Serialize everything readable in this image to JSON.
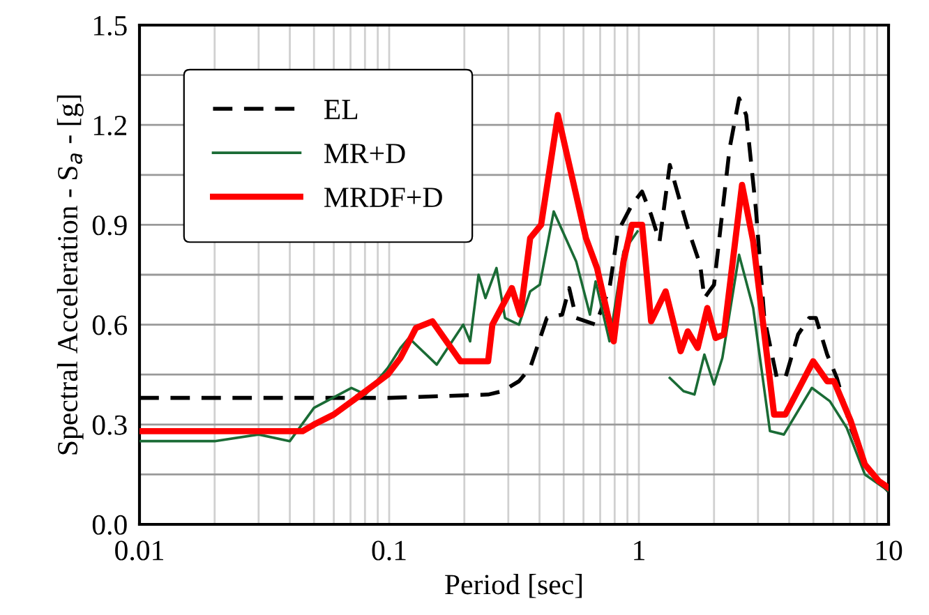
{
  "chart_data": {
    "type": "line",
    "xlabel": "Period [sec]",
    "ylabel": "Spectral Acceleration - S$_{a}$ - [g]",
    "log": "x",
    "xlim": [
      0.01,
      10
    ],
    "ylim": [
      0,
      1.5
    ],
    "xticks": [
      0.01,
      {
        "value": 0.02,
        "label": null
      },
      {
        "value": 0.03,
        "label": null
      },
      {
        "value": 0.04,
        "label": null
      },
      {
        "value": 0.05,
        "label": null
      },
      {
        "value": 0.06,
        "label": null
      },
      {
        "value": 0.07,
        "label": null
      },
      {
        "value": 0.08,
        "label": null
      },
      {
        "value": 0.09,
        "label": null
      },
      0.1,
      {
        "value": 0.2,
        "label": null
      },
      {
        "value": 0.3,
        "label": null
      },
      {
        "value": 0.4,
        "label": null
      },
      {
        "value": 0.5,
        "label": null
      },
      {
        "value": 0.6,
        "label": null
      },
      {
        "value": 0.7,
        "label": null
      },
      {
        "value": 0.8,
        "label": null
      },
      {
        "value": 0.9,
        "label": null
      },
      1,
      {
        "value": 2,
        "label": null
      },
      {
        "value": 3,
        "label": null
      },
      {
        "value": 4,
        "label": null
      },
      {
        "value": 5,
        "label": null
      },
      {
        "value": 6,
        "label": null
      },
      {
        "value": 7,
        "label": null
      },
      {
        "value": 8,
        "label": null
      },
      {
        "value": 9,
        "label": null
      },
      10
    ],
    "yticks": [
      {
        "value": 0,
        "label": "0.0"
      },
      {
        "value": 0.15,
        "label": null
      },
      0.3,
      {
        "value": 0.45,
        "label": null
      },
      0.6,
      {
        "value": 0.75,
        "label": null
      },
      0.9,
      {
        "value": 1.05,
        "label": null
      },
      1.2,
      {
        "value": 1.35,
        "label": null
      },
      1.5
    ],
    "grid": true,
    "legend": "top left",
    "marker": "none",
    "series": [
      {
        "name": "EL",
        "color": "#000000",
        "line_style": "dashed",
        "x": [
          0.01,
          0.1,
          0.249,
          0.284,
          0.331,
          0.367,
          0.428,
          0.493,
          0.526,
          0.561,
          0.671,
          0.763,
          0.824,
          0.938,
          1.03,
          1.12,
          1.21,
          1.33,
          1.45,
          1.57,
          1.76,
          1.83,
          2.0,
          2.31,
          2.52,
          2.69,
          2.94,
          3.18,
          3.57,
          3.86,
          4.34,
          4.81,
          5.12,
          5.68,
          6.21,
          7.06,
          8.04,
          9.14,
          10
        ],
        "values": [
          0.38,
          0.38,
          0.39,
          0.4,
          0.43,
          0.47,
          0.62,
          0.63,
          0.71,
          0.62,
          0.6,
          0.71,
          0.88,
          0.96,
          1.0,
          0.93,
          0.85,
          1.08,
          0.98,
          0.89,
          0.78,
          0.68,
          0.72,
          1.13,
          1.28,
          1.23,
          0.95,
          0.62,
          0.44,
          0.44,
          0.57,
          0.62,
          0.62,
          0.51,
          0.44,
          0.29,
          0.18,
          0.13,
          0.1
        ]
      },
      {
        "name": "MR+D",
        "color": "#1a6b35",
        "line_style": "solid",
        "x": [
          0.01,
          0.02,
          0.03,
          0.04,
          0.05,
          0.0706,
          0.0804,
          0.0987,
          0.111,
          0.12,
          0.155,
          0.198,
          0.211,
          0.228,
          0.243,
          0.269,
          0.291,
          0.331,
          0.367,
          0.401,
          0.456,
          0.561,
          0.637,
          0.671,
          0.763,
          0.868,
          0.987,
          1.12,
          1.33,
          1.51,
          1.67,
          1.83,
          2.0,
          2.16,
          2.52,
          2.87,
          3.35,
          3.81,
          4.93,
          5.82,
          6.8,
          8.04,
          10
        ],
        "values": [
          0.25,
          0.25,
          0.27,
          0.25,
          0.35,
          0.41,
          0.39,
          0.47,
          0.53,
          0.56,
          0.48,
          0.6,
          0.55,
          0.75,
          0.68,
          0.77,
          0.62,
          0.6,
          0.7,
          0.72,
          0.94,
          0.79,
          0.63,
          0.73,
          0.55,
          0.82,
          0.88,
          null,
          0.44,
          0.4,
          0.39,
          0.51,
          0.42,
          0.5,
          0.81,
          0.65,
          0.28,
          0.27,
          0.41,
          0.37,
          0.29,
          0.15,
          0.1
        ]
      },
      {
        "name": "MRDF+D",
        "color": "#ff0000",
        "line_style": "solid",
        "x": [
          0.01,
          0.045,
          0.05,
          0.06,
          0.0804,
          0.0987,
          0.111,
          0.128,
          0.149,
          0.193,
          0.249,
          0.259,
          0.31,
          0.335,
          0.367,
          0.406,
          0.474,
          0.614,
          0.68,
          0.793,
          0.868,
          0.938,
          1.03,
          1.12,
          1.28,
          1.47,
          1.57,
          1.72,
          1.88,
          2.03,
          2.19,
          2.59,
          2.87,
          3.48,
          3.86,
          4.99,
          5.68,
          6.05,
          7.06,
          8.04,
          9.14,
          10
        ],
        "values": [
          0.28,
          0.28,
          0.3,
          0.33,
          0.4,
          0.45,
          0.5,
          0.59,
          0.61,
          0.49,
          0.49,
          0.6,
          0.71,
          0.63,
          0.86,
          0.9,
          1.23,
          0.86,
          0.77,
          0.55,
          0.79,
          0.9,
          0.9,
          0.61,
          0.7,
          0.52,
          0.58,
          0.53,
          0.65,
          0.56,
          0.57,
          1.02,
          0.85,
          0.33,
          0.33,
          0.49,
          0.43,
          0.43,
          0.31,
          0.18,
          0.13,
          0.11
        ]
      }
    ]
  }
}
